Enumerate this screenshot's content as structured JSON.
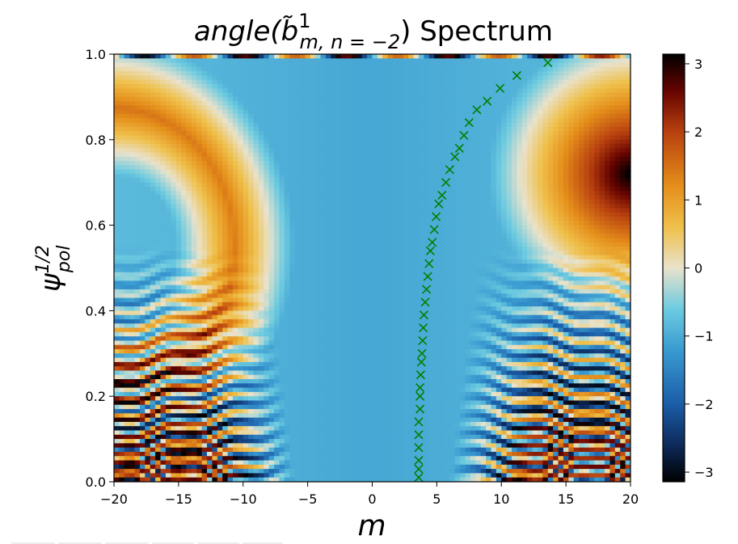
{
  "chart_data": {
    "type": "heatmap",
    "title": {
      "prefix": "angle(",
      "symbol": "b̃",
      "superscript": "1",
      "subscript": "m, n = −2",
      "suffix": ") Spectrum"
    },
    "xlabel": "m",
    "ylabel": {
      "base": "ψ",
      "superscript": "1/2",
      "subscript": "pol"
    },
    "xlim": [
      -20,
      20
    ],
    "ylim": [
      0.0,
      1.0
    ],
    "x_ticks": [
      -20,
      -15,
      -10,
      -5,
      0,
      5,
      10,
      15,
      20
    ],
    "x_tick_labels": [
      "−20",
      "−15",
      "−10",
      "−5",
      "0",
      "5",
      "10",
      "15",
      "20"
    ],
    "y_ticks": [
      0.0,
      0.2,
      0.4,
      0.6,
      0.8,
      1.0
    ],
    "y_tick_labels": [
      "0.0",
      "0.2",
      "0.4",
      "0.6",
      "0.8",
      "1.0"
    ],
    "colorbar": {
      "range": [
        -3.14159,
        3.14159
      ],
      "ticks": [
        -3,
        -2,
        -1,
        0,
        1,
        2,
        3
      ],
      "tick_labels": [
        "−3",
        "−2",
        "−1",
        "0",
        "1",
        "2",
        "3"
      ],
      "colormap_stops": [
        {
          "value": -3.14159,
          "color": "#000000"
        },
        {
          "value": -2.6,
          "color": "#0d2a5a"
        },
        {
          "value": -2.0,
          "color": "#1b5da8"
        },
        {
          "value": -1.2,
          "color": "#3a9bd1"
        },
        {
          "value": -0.6,
          "color": "#6dcbe0"
        },
        {
          "value": 0.0,
          "color": "#e9e2cc"
        },
        {
          "value": 0.6,
          "color": "#efc04a"
        },
        {
          "value": 1.2,
          "color": "#e58f1b"
        },
        {
          "value": 2.0,
          "color": "#b8400f"
        },
        {
          "value": 2.6,
          "color": "#660400"
        },
        {
          "value": 3.14159,
          "color": "#000000"
        }
      ]
    },
    "marker_series": {
      "marker": "x",
      "color": "#008000",
      "points": [
        {
          "m": 3.6,
          "psi": 0.01
        },
        {
          "m": 3.6,
          "psi": 0.03
        },
        {
          "m": 3.6,
          "psi": 0.05
        },
        {
          "m": 3.6,
          "psi": 0.08
        },
        {
          "m": 3.6,
          "psi": 0.11
        },
        {
          "m": 3.6,
          "psi": 0.14
        },
        {
          "m": 3.7,
          "psi": 0.17
        },
        {
          "m": 3.7,
          "psi": 0.2
        },
        {
          "m": 3.7,
          "psi": 0.22
        },
        {
          "m": 3.75,
          "psi": 0.25
        },
        {
          "m": 3.8,
          "psi": 0.28
        },
        {
          "m": 3.85,
          "psi": 0.3
        },
        {
          "m": 3.9,
          "psi": 0.33
        },
        {
          "m": 3.95,
          "psi": 0.36
        },
        {
          "m": 4.0,
          "psi": 0.39
        },
        {
          "m": 4.1,
          "psi": 0.42
        },
        {
          "m": 4.2,
          "psi": 0.45
        },
        {
          "m": 4.3,
          "psi": 0.48
        },
        {
          "m": 4.4,
          "psi": 0.51
        },
        {
          "m": 4.5,
          "psi": 0.54
        },
        {
          "m": 4.65,
          "psi": 0.56
        },
        {
          "m": 4.8,
          "psi": 0.59
        },
        {
          "m": 4.95,
          "psi": 0.62
        },
        {
          "m": 5.15,
          "psi": 0.65
        },
        {
          "m": 5.4,
          "psi": 0.67
        },
        {
          "m": 5.7,
          "psi": 0.7
        },
        {
          "m": 6.0,
          "psi": 0.73
        },
        {
          "m": 6.4,
          "psi": 0.76
        },
        {
          "m": 6.75,
          "psi": 0.78
        },
        {
          "m": 7.1,
          "psi": 0.81
        },
        {
          "m": 7.5,
          "psi": 0.84
        },
        {
          "m": 8.1,
          "psi": 0.87
        },
        {
          "m": 8.9,
          "psi": 0.89
        },
        {
          "m": 9.9,
          "psi": 0.92
        },
        {
          "m": 11.2,
          "psi": 0.95
        },
        {
          "m": 13.6,
          "psi": 0.98
        }
      ]
    },
    "grid": false,
    "legend": "none"
  }
}
